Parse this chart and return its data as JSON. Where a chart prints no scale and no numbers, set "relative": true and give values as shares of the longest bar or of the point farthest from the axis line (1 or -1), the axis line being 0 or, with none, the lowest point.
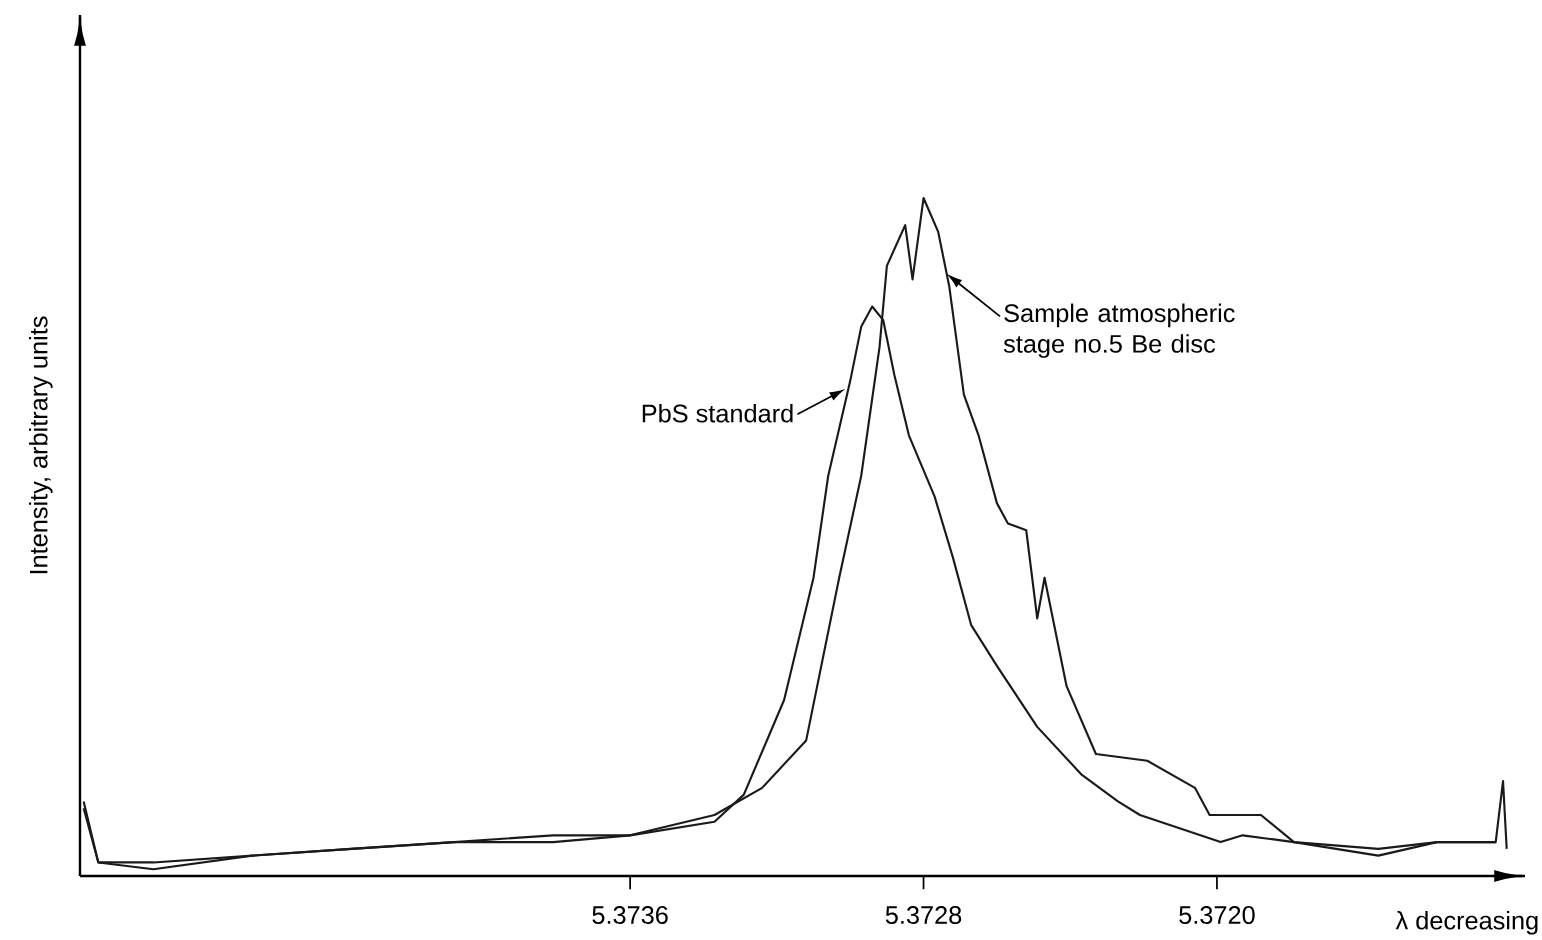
{
  "chart_data": {
    "type": "line",
    "relative": true,
    "xlabel": "λ decreasing",
    "ylabel": "Intensity, arbitrary units",
    "xlim": [
      5.3751,
      5.37116
    ],
    "xticks": [
      5.3736,
      5.3728,
      {
        "value": 5.372,
        "label": "5.3720"
      }
    ],
    "series": [
      {
        "color": "#1a1a1a",
        "x": [
          5.37509,
          5.37505,
          5.3749,
          5.37463,
          5.37436,
          5.37408,
          5.37381,
          5.3736,
          5.37337,
          5.37329,
          5.37318,
          5.3731,
          5.37306,
          5.373,
          5.37297,
          5.37294,
          5.37291,
          5.37288,
          5.37284,
          5.37277,
          5.37272,
          5.37267,
          5.3726,
          5.37249,
          5.37237,
          5.37227,
          5.37221,
          5.37199,
          5.37193,
          5.37179,
          5.37156,
          5.3714,
          5.37124
        ],
        "values": [
          0.1,
          0.02,
          0.01,
          0.03,
          0.04,
          0.05,
          0.06,
          0.06,
          0.08,
          0.12,
          0.26,
          0.44,
          0.59,
          0.73,
          0.81,
          0.84,
          0.82,
          0.74,
          0.65,
          0.56,
          0.47,
          0.37,
          0.31,
          0.22,
          0.15,
          0.11,
          0.09,
          0.05,
          0.06,
          0.05,
          0.04,
          0.05,
          0.05
        ]
      },
      {
        "color": "#1a1a1a",
        "x": [
          5.37509,
          5.37505,
          5.3749,
          5.37463,
          5.37436,
          5.37408,
          5.37381,
          5.3736,
          5.37337,
          5.37324,
          5.37312,
          5.37303,
          5.37297,
          5.37292,
          5.3729,
          5.37285,
          5.37283,
          5.3728,
          5.37276,
          5.37273,
          5.37269,
          5.37265,
          5.3726,
          5.37257,
          5.37252,
          5.37249,
          5.37247,
          5.37241,
          5.37233,
          5.37219,
          5.37206,
          5.37202,
          5.37188,
          5.37179,
          5.37156,
          5.3714,
          5.37124,
          5.37122,
          5.37121
        ],
        "values": [
          0.11,
          0.02,
          0.02,
          0.03,
          0.04,
          0.05,
          0.05,
          0.06,
          0.09,
          0.13,
          0.2,
          0.44,
          0.59,
          0.78,
          0.9,
          0.96,
          0.88,
          1.0,
          0.95,
          0.87,
          0.71,
          0.65,
          0.55,
          0.52,
          0.51,
          0.38,
          0.44,
          0.28,
          0.18,
          0.17,
          0.13,
          0.09,
          0.09,
          0.05,
          0.03,
          0.05,
          0.05,
          0.14,
          0.04
        ]
      }
    ],
    "annotations": [
      {
        "text": "PbS standard",
        "x": 5.37301,
        "y": 0.72
      },
      {
        "text": "Sample atmospheric stage no.5 Be disc",
        "x": 5.37274,
        "y": 0.89
      }
    ]
  }
}
